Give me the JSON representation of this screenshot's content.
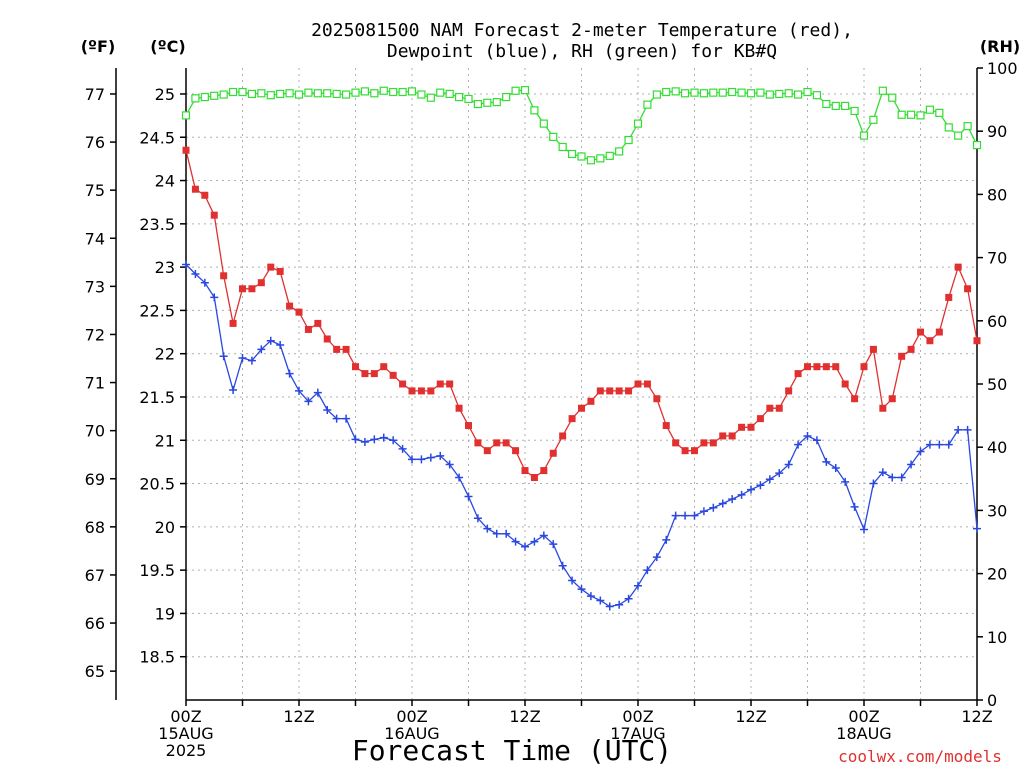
{
  "chart_data": {
    "type": "line",
    "title_line1": "2025081500 NAM Forecast 2-meter Temperature (red),",
    "title_line2": "Dewpoint (blue), RH (green) for KB#Q",
    "unit_f": "(ºF)",
    "unit_c": "(ºC)",
    "unit_rh": "(RH)",
    "xlabel": "Forecast Time (UTC)",
    "credit": "coolwx.com/models",
    "x_hours_range": [
      0,
      84
    ],
    "x_ticks": [
      {
        "h": 0,
        "lines": [
          "00Z",
          "15AUG",
          "2025"
        ]
      },
      {
        "h": 12,
        "lines": [
          "12Z"
        ]
      },
      {
        "h": 24,
        "lines": [
          "00Z",
          "16AUG"
        ]
      },
      {
        "h": 36,
        "lines": [
          "12Z"
        ]
      },
      {
        "h": 48,
        "lines": [
          "00Z",
          "17AUG"
        ]
      },
      {
        "h": 60,
        "lines": [
          "12Z"
        ]
      },
      {
        "h": 72,
        "lines": [
          "00Z",
          "18AUG"
        ]
      },
      {
        "h": 84,
        "lines": [
          "12Z"
        ]
      }
    ],
    "celsius_range": [
      18,
      25.3
    ],
    "celsius_ticks": [
      "18.5",
      "19",
      "19.5",
      "20",
      "20.5",
      "21",
      "21.5",
      "22",
      "22.5",
      "23",
      "23.5",
      "24",
      "24.5",
      "25"
    ],
    "fahrenheit_ticks": [
      "65",
      "66",
      "67",
      "68",
      "69",
      "70",
      "71",
      "72",
      "73",
      "74",
      "75",
      "76",
      "77"
    ],
    "rh_range": [
      0,
      100
    ],
    "rh_ticks": [
      "0",
      "10",
      "20",
      "30",
      "40",
      "50",
      "60",
      "70",
      "80",
      "90",
      "100"
    ],
    "series": [
      {
        "name": "Temperature",
        "axis": "celsius",
        "color": "#e03030",
        "marker": "filled-square",
        "values": [
          24.35,
          23.9,
          23.83,
          23.6,
          22.9,
          22.35,
          22.75,
          22.75,
          22.82,
          23.0,
          22.95,
          22.55,
          22.48,
          22.28,
          22.35,
          22.17,
          22.05,
          22.05,
          21.85,
          21.77,
          21.77,
          21.85,
          21.75,
          21.65,
          21.57,
          21.57,
          21.57,
          21.65,
          21.65,
          21.37,
          21.17,
          20.97,
          20.88,
          20.97,
          20.97,
          20.88,
          20.65,
          20.57,
          20.65,
          20.85,
          21.05,
          21.25,
          21.37,
          21.45,
          21.57,
          21.57,
          21.57,
          21.57,
          21.65,
          21.65,
          21.48,
          21.17,
          20.97,
          20.88,
          20.88,
          20.97,
          20.97,
          21.05,
          21.05,
          21.15,
          21.15,
          21.25,
          21.37,
          21.37,
          21.57,
          21.77,
          21.85,
          21.85,
          21.85,
          21.85,
          21.65,
          21.48,
          21.85,
          22.05,
          21.37,
          21.48,
          21.97,
          22.05,
          22.25,
          22.15,
          22.25,
          22.65,
          23.0,
          22.75,
          22.15
        ]
      },
      {
        "name": "Dewpoint",
        "axis": "celsius",
        "color": "#2a48e0",
        "marker": "plus",
        "values": [
          23.03,
          22.92,
          22.82,
          22.65,
          21.97,
          21.58,
          21.95,
          21.92,
          22.05,
          22.15,
          22.1,
          21.77,
          21.57,
          21.45,
          21.55,
          21.35,
          21.25,
          21.25,
          21.01,
          20.98,
          21.01,
          21.03,
          21.0,
          20.9,
          20.78,
          20.78,
          20.8,
          20.82,
          20.72,
          20.57,
          20.35,
          20.1,
          19.98,
          19.92,
          19.92,
          19.83,
          19.77,
          19.83,
          19.9,
          19.8,
          19.55,
          19.38,
          19.28,
          19.2,
          19.15,
          19.08,
          19.1,
          19.17,
          19.32,
          19.5,
          19.65,
          19.85,
          20.13,
          20.13,
          20.13,
          20.18,
          20.22,
          20.27,
          20.32,
          20.37,
          20.43,
          20.48,
          20.55,
          20.62,
          20.72,
          20.95,
          21.05,
          21.0,
          20.75,
          20.68,
          20.52,
          20.23,
          19.97,
          20.5,
          20.63,
          20.57,
          20.57,
          20.72,
          20.87,
          20.95,
          20.95,
          20.95,
          21.12,
          21.12,
          19.98
        ]
      },
      {
        "name": "RH",
        "axis": "rh",
        "color": "#33dd33",
        "marker": "open-square",
        "values": [
          92.5,
          95.2,
          95.4,
          95.6,
          95.8,
          96.2,
          96.2,
          95.9,
          96,
          95.7,
          95.9,
          96,
          95.8,
          96.1,
          96,
          96,
          95.9,
          95.8,
          96.1,
          96.3,
          96,
          96.4,
          96.2,
          96.2,
          96.3,
          95.8,
          95.3,
          96.1,
          95.9,
          95.4,
          95.1,
          94.3,
          94.5,
          94.6,
          95.4,
          96.4,
          96.5,
          93.3,
          91.2,
          89.1,
          87.5,
          86.4,
          86,
          85.4,
          85.7,
          86.1,
          86.8,
          88.6,
          91.2,
          94.2,
          95.8,
          96.2,
          96.3,
          96,
          96.1,
          96,
          96.1,
          96.1,
          96.2,
          96.1,
          96,
          96.1,
          95.8,
          95.9,
          96,
          95.8,
          96.2,
          95.7,
          94.3,
          94,
          94,
          93.2,
          89.3,
          91.8,
          96.4,
          95.3,
          92.6,
          92.6,
          92.5,
          93.4,
          92.9,
          90.6,
          89.3,
          90.8,
          87.8
        ]
      }
    ]
  }
}
